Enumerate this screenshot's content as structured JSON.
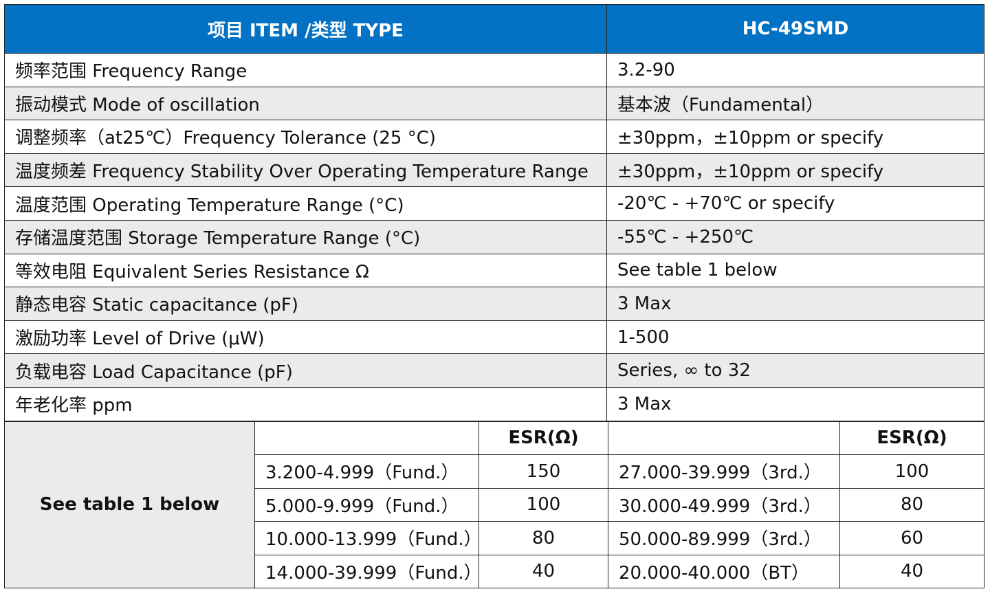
{
  "header": {
    "item_label": "项目 ITEM /类型 TYPE",
    "model": "HC-49SMD"
  },
  "rows": [
    {
      "label": "频率范围  Frequency Range",
      "value": "3.2-90"
    },
    {
      "label": "振动模式  Mode of oscillation",
      "value": "基本波（Fundamental）"
    },
    {
      "label": "调整频率（at25℃）Frequency Tolerance (25  °C)",
      "value": "±30ppm，±10ppm or specify"
    },
    {
      "label": "温度频差  Frequency Stability Over Operating Temperature Range",
      "value": "±30ppm，±10ppm or specify"
    },
    {
      "label": "温度范围  Operating Temperature Range (°C)",
      "value": "-20℃  - +70℃  or specify"
    },
    {
      "label": "存储温度范围  Storage Temperature Range (°C)",
      "value": "-55℃  - +250℃"
    },
    {
      "label": "等效电阻  Equivalent Series Resistance  Ω",
      "value": "See table 1 below"
    },
    {
      "label": "静态电容  Static capacitance (pF)",
      "value": "3 Max"
    },
    {
      "label": "激励功率  Level of Drive (μW)",
      "value": "1-500"
    },
    {
      "label": "负载电容  Load Capacitance (pF)",
      "value": "Series, ∞ to 32"
    },
    {
      "label": "年老化率  ppm",
      "value": "3 Max"
    }
  ],
  "esr_table": {
    "label": "See table 1 below",
    "esr_header": "ESR(Ω)",
    "rows": [
      {
        "left_range": "3.200-4.999（Fund.）",
        "left_esr": "150",
        "right_range": "27.000-39.999（3rd.）",
        "right_esr": "100"
      },
      {
        "left_range": "5.000-9.999（Fund.）",
        "left_esr": "100",
        "right_range": "30.000-49.999（3rd.）",
        "right_esr": "80"
      },
      {
        "left_range": "10.000-13.999（Fund.）",
        "left_esr": "80",
        "right_range": "50.000-89.999（3rd.）",
        "right_esr": "60"
      },
      {
        "left_range": "14.000-39.999（Fund.）",
        "left_esr": "40",
        "right_range": "20.000-40.000（BT）",
        "right_esr": "40"
      }
    ]
  },
  "colors": {
    "header_bg": "#0472c4",
    "header_text": "#ffffff",
    "stripe": "#ebebeb"
  }
}
